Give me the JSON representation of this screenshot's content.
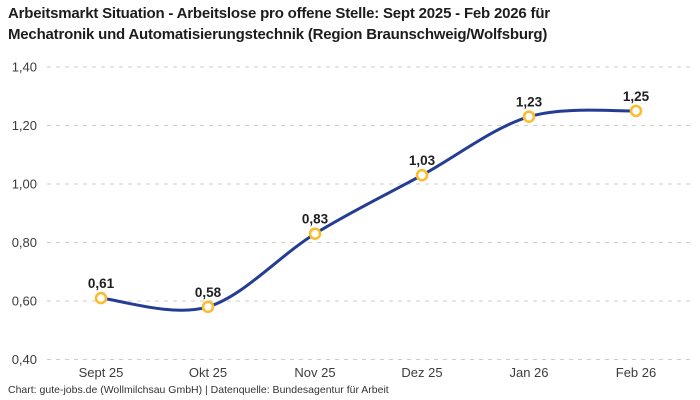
{
  "title": "Arbeitsmarkt Situation - Arbeitslose pro offene Stelle: Sept 2025 - Feb 2026 für Mechatronik und Automatisierungstechnik (Region Braunschweig/Wolfsburg)",
  "title_line1": "Arbeitsmarkt Situation - Arbeitslose pro offene Stelle: Sept 2025 - Feb 2026 für",
  "title_line2": "Mechatronik und Automatisierungstechnik (Region Braunschweig/Wolfsburg)",
  "footer": "Chart: gute-jobs.de (Wollmilchsau GmbH) | Datenquelle: Bundesagentur für Arbeit",
  "chart_data": {
    "type": "line",
    "categories": [
      "Sept 25",
      "Okt 25",
      "Nov 25",
      "Dez 25",
      "Jan 26",
      "Feb 26"
    ],
    "values": [
      0.61,
      0.58,
      0.83,
      1.03,
      1.23,
      1.25
    ],
    "point_labels": [
      "0,61",
      "0,58",
      "0,83",
      "1,03",
      "1,23",
      "1,25"
    ],
    "yticks": [
      0.4,
      0.6,
      0.8,
      1.0,
      1.2,
      1.4
    ],
    "ytick_labels": [
      "0,40",
      "0,60",
      "0,80",
      "1,00",
      "1,20",
      "1,40"
    ],
    "ylim": [
      0.4,
      1.4
    ],
    "title": "Arbeitsmarkt Situation - Arbeitslose pro offene Stelle: Sept 2025 - Feb 2026 für Mechatronik und Automatisierungstechnik (Region Braunschweig/Wolfsburg)",
    "xlabel": "",
    "ylabel": "",
    "grid": "horizontal-dashed",
    "legend": "none",
    "colors": {
      "line": "#233D94",
      "marker_stroke": "#FBBD2F",
      "marker_fill": "#FFFFFF",
      "gridline": "#CDCDCD",
      "tick_label": "#3C3C3C",
      "data_label": "#1F1F1F",
      "title": "#1D1D1D",
      "background": "#FFFFFF"
    }
  }
}
